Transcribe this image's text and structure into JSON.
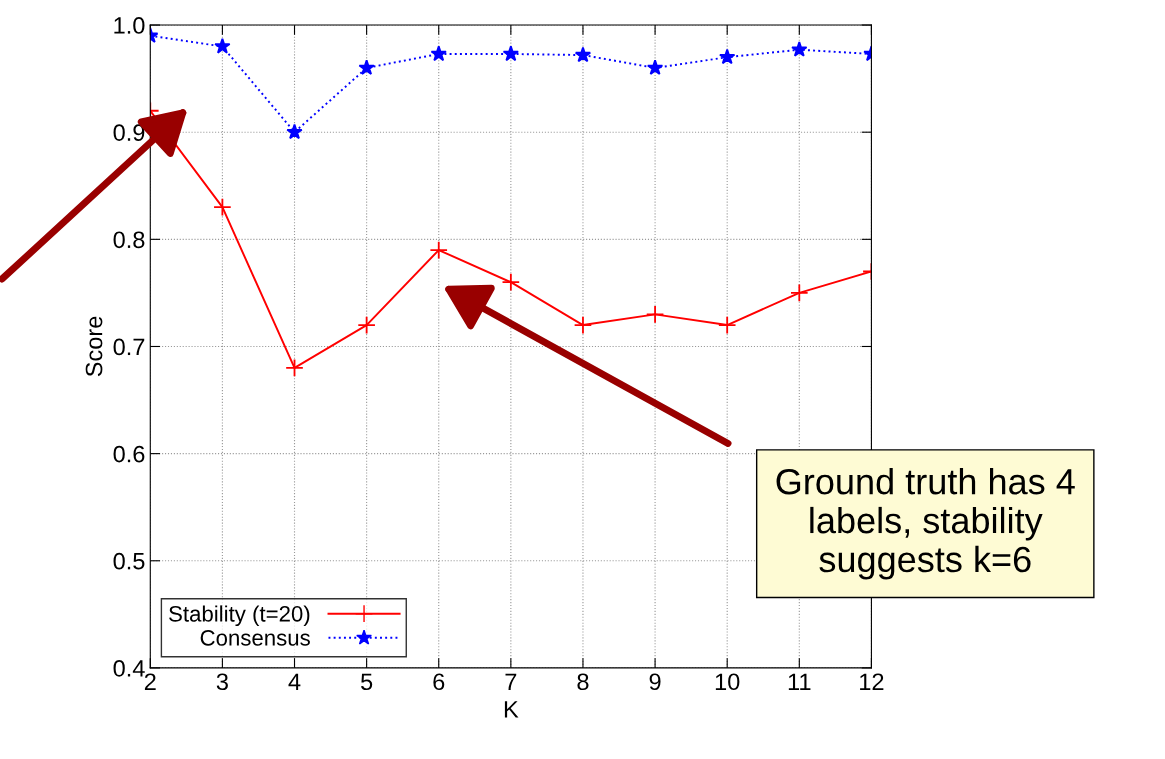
{
  "chart_data": {
    "type": "line",
    "xlabel": "K",
    "ylabel": "Score",
    "x": [
      2,
      3,
      4,
      5,
      6,
      7,
      8,
      9,
      10,
      11,
      12
    ],
    "series": [
      {
        "name": "Stability (t=20)",
        "color": "#ff0000",
        "values": [
          0.92,
          0.83,
          0.68,
          0.72,
          0.79,
          0.76,
          0.72,
          0.73,
          0.72,
          0.75,
          0.77
        ],
        "marker": "cross",
        "line_style": "solid"
      },
      {
        "name": "Consensus",
        "color": "#0000ff",
        "values": [
          0.99,
          0.98,
          0.9,
          0.96,
          0.973,
          0.973,
          0.972,
          0.96,
          0.97,
          0.977,
          0.973
        ],
        "marker": "star",
        "line_style": "dotted"
      }
    ],
    "xlim": [
      2,
      12
    ],
    "ylim": [
      0.4,
      1.0
    ],
    "xticks": [
      2,
      3,
      4,
      5,
      6,
      7,
      8,
      9,
      10,
      11,
      12
    ],
    "yticks": [
      0.4,
      0.5,
      0.6,
      0.7,
      0.8,
      0.9,
      {
        "value": 1.0,
        "label": "1.0"
      }
    ],
    "grid": true,
    "legend": "bottom left",
    "annotations": [
      "Ground truth has 4 labels, stability suggests k=6"
    ]
  }
}
